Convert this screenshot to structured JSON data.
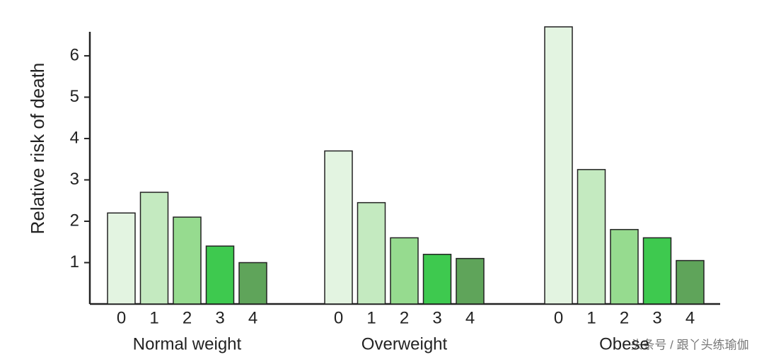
{
  "chart_data": {
    "type": "grouped_bar",
    "y_label": "Relative risk of death",
    "categories": [
      "Normal weight",
      "Overweight",
      "Obese"
    ],
    "series": [
      {
        "name": "0",
        "color": "#e3f4e1",
        "values": [
          2.2,
          3.7,
          6.7
        ]
      },
      {
        "name": "1",
        "color": "#c4eac0",
        "values": [
          2.7,
          2.45,
          3.25
        ]
      },
      {
        "name": "2",
        "color": "#96db8f",
        "values": [
          2.1,
          1.6,
          1.8
        ]
      },
      {
        "name": "3",
        "color": "#3ec94f",
        "values": [
          1.4,
          1.2,
          1.6
        ]
      },
      {
        "name": "4",
        "color": "#5fa45a",
        "values": [
          1.0,
          1.1,
          1.05
        ]
      }
    ],
    "ylim": [
      0,
      6.8
    ],
    "yticks": [
      1,
      2,
      3,
      4,
      5,
      6
    ],
    "watermark": "头条号 / 跟丫头练瑜伽"
  }
}
